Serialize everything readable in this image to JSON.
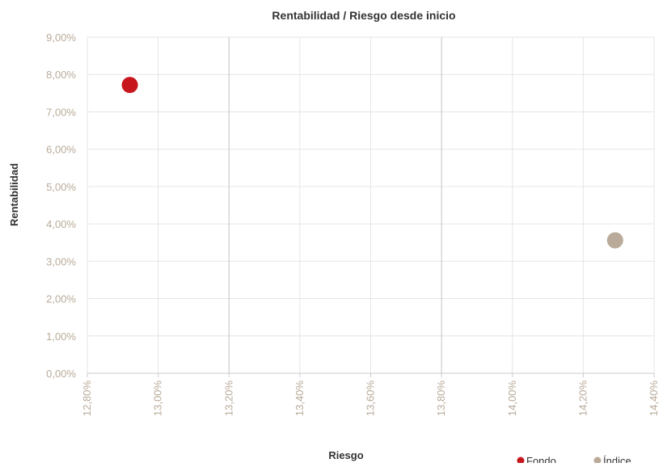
{
  "chart_data": {
    "type": "scatter",
    "title": "Rentabilidad / Riesgo desde inicio",
    "xlabel": "Riesgo",
    "ylabel": "Rentabilidad",
    "xlim": [
      12.8,
      14.4
    ],
    "ylim": [
      0,
      9
    ],
    "x_ticks": [
      "12,80%",
      "13,00%",
      "13,20%",
      "13,40%",
      "13,60%",
      "13,80%",
      "14,00%",
      "14,20%",
      "14,40%"
    ],
    "y_ticks": [
      "0,00%",
      "1,00%",
      "2,00%",
      "3,00%",
      "4,00%",
      "5,00%",
      "6,00%",
      "7,00%",
      "8,00%",
      "9,00%"
    ],
    "grid": true,
    "legend_position": "bottom-right",
    "series": [
      {
        "name": "Fondo",
        "color": "#c8161d",
        "points": [
          {
            "x": 12.92,
            "y": 7.72
          }
        ]
      },
      {
        "name": "Índice",
        "color": "#b9aa99",
        "points": [
          {
            "x": 14.29,
            "y": 3.56
          }
        ]
      }
    ],
    "colors": {
      "tick_text": "#b9aa99",
      "grid": "#e6e6e6",
      "axis_text": "#333333"
    }
  }
}
